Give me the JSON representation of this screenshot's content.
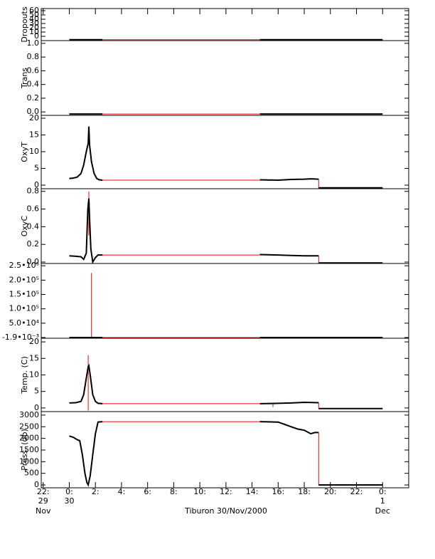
{
  "x_axis": {
    "label": "Tiburon 30/Nov/2000",
    "xlim": [
      -2.15,
      26.0
    ],
    "xticks": [
      {
        "value": -2,
        "label": "22:"
      },
      {
        "value": 0,
        "label": "0:"
      },
      {
        "value": 2,
        "label": "2:"
      },
      {
        "value": 4,
        "label": "4:"
      },
      {
        "value": 6,
        "label": "6:"
      },
      {
        "value": 8,
        "label": "8:"
      },
      {
        "value": 10,
        "label": "10:"
      },
      {
        "value": 12,
        "label": "12:"
      },
      {
        "value": 14,
        "label": "14:"
      },
      {
        "value": 16,
        "label": "16:"
      },
      {
        "value": 18,
        "label": "18:"
      },
      {
        "value": 20,
        "label": "20:"
      },
      {
        "value": 22,
        "label": "22:"
      },
      {
        "value": 24,
        "label": "0:"
      }
    ],
    "xtick_dates": [
      {
        "value": -2,
        "lines": [
          "29",
          "Nov"
        ]
      },
      {
        "value": 0,
        "lines": [
          "30"
        ]
      },
      {
        "value": 24,
        "lines": [
          "1",
          "Dec"
        ]
      }
    ]
  },
  "chart_data": [
    {
      "type": "line",
      "ylabel": "Dropouts",
      "ylim": [
        -10,
        65
      ],
      "yticks": [
        0,
        10,
        20,
        30,
        40,
        50,
        60
      ],
      "segments": [
        {
          "color": "#ff0000",
          "x": [
            2.55,
            14.6
          ],
          "values": [
            -8,
            -8
          ]
        },
        {
          "color": "#000000",
          "x": [
            0,
            2.55
          ],
          "values": [
            -8,
            -8
          ]
        },
        {
          "color": "#000000",
          "x": [
            14.6,
            24
          ],
          "values": [
            -8,
            -8
          ]
        }
      ]
    },
    {
      "type": "line",
      "ylabel": "Trans",
      "ylim": [
        -0.05,
        1.04
      ],
      "yticks": [
        {
          "value": 0,
          "label": "0.0"
        },
        0.2,
        0.4,
        0.6,
        0.8,
        {
          "value": 1,
          "label": "1.0"
        }
      ],
      "segments": [
        {
          "color": "#ff0000",
          "x": [
            2.55,
            14.6
          ],
          "values": [
            -0.03,
            -0.03
          ]
        },
        {
          "color": "#000000",
          "x": [
            0,
            2.55
          ],
          "values": [
            -0.03,
            -0.03
          ]
        },
        {
          "color": "#000000",
          "x": [
            14.6,
            24
          ],
          "values": [
            -0.03,
            -0.03
          ]
        }
      ]
    },
    {
      "type": "line",
      "ylabel": "OxyT",
      "ylim": [
        -1.06,
        20.85
      ],
      "yticks": [
        0,
        5,
        10,
        15,
        20
      ],
      "segments": [
        {
          "color": "#ff0000",
          "x": [
            2.55,
            14.6
          ],
          "values": [
            1.5,
            1.5
          ]
        },
        {
          "color": "#ff0000",
          "x": [
            19.1,
            19.1
          ],
          "values": [
            1.8,
            -0.8
          ]
        },
        {
          "color": "#000000",
          "x": [
            0,
            0.3,
            0.6,
            0.9,
            1.1,
            1.3,
            1.45,
            1.5,
            1.55,
            1.7,
            1.9,
            2.1,
            2.3,
            2.55
          ],
          "values": [
            2,
            2.1,
            2.4,
            3.5,
            6,
            10,
            12.5,
            17.5,
            12,
            7,
            3.5,
            2,
            1.6,
            1.5
          ]
        },
        {
          "color": "#000000",
          "x": [
            14.6,
            16,
            17,
            18,
            18.5,
            19.1
          ],
          "values": [
            1.6,
            1.5,
            1.7,
            1.8,
            1.9,
            1.8
          ]
        },
        {
          "color": "#000000",
          "x": [
            19.1,
            24
          ],
          "values": [
            -0.8,
            -0.8
          ]
        }
      ]
    },
    {
      "type": "line",
      "ylabel": "OxyC",
      "ylim": [
        -0.016,
        0.83
      ],
      "yticks": [
        {
          "value": 0,
          "label": "0.0"
        },
        0.2,
        0.4,
        0.6,
        0.8
      ],
      "segments": [
        {
          "color": "#ff0000",
          "x": [
            2.55,
            14.6
          ],
          "values": [
            0.08,
            0.08
          ]
        },
        {
          "color": "#ff0000",
          "x": [
            1.5,
            1.5
          ],
          "values": [
            0.8,
            0.3
          ]
        },
        {
          "color": "#ff0000",
          "x": [
            19.1,
            19.1
          ],
          "values": [
            0.07,
            -0.01
          ]
        },
        {
          "color": "#000000",
          "x": [
            0,
            0.5,
            0.9,
            1.1,
            1.3,
            1.42,
            1.5,
            1.55,
            1.65,
            1.8,
            2.0,
            2.2,
            2.55
          ],
          "values": [
            0.07,
            0.065,
            0.06,
            0.03,
            0.1,
            0.6,
            0.72,
            0.5,
            0.15,
            0.0,
            0.05,
            0.08,
            0.08
          ]
        },
        {
          "color": "#000000",
          "x": [
            14.6,
            16,
            17,
            18,
            19.1
          ],
          "values": [
            0.085,
            0.08,
            0.075,
            0.07,
            0.07
          ]
        },
        {
          "color": "#000000",
          "x": [
            19.1,
            24
          ],
          "values": [
            -0.01,
            -0.01
          ]
        }
      ]
    },
    {
      "type": "line",
      "ylim": [
        -2500,
        258000
      ],
      "yticks": [
        {
          "value": -0.0019,
          "label": "-1.9•10⁻³"
        },
        {
          "value": 50000,
          "label": "5.0•10⁴"
        },
        {
          "value": 100000,
          "label": "1.0•10⁵"
        },
        {
          "value": 150000,
          "label": "1.5•10⁵"
        },
        {
          "value": 200000,
          "label": "2.0•10⁵"
        },
        {
          "value": 250000,
          "label": "2.5•10⁵"
        }
      ],
      "segments": [
        {
          "color": "#ff0000",
          "x": [
            2.55,
            14.6
          ],
          "values": [
            0,
            0
          ]
        },
        {
          "color": "#ff0000",
          "x": [
            1.7,
            1.7
          ],
          "values": [
            0,
            225000
          ]
        },
        {
          "color": "#000000",
          "x": [
            0,
            2.55
          ],
          "values": [
            0,
            0
          ]
        },
        {
          "color": "#000000",
          "x": [
            14.6,
            24
          ],
          "values": [
            0,
            0
          ]
        }
      ]
    },
    {
      "type": "line",
      "ylabel": "Temp. (C)",
      "ylim": [
        -1.1,
        21.1
      ],
      "yticks": [
        0,
        5,
        10,
        15,
        20
      ],
      "segments": [
        {
          "color": "#ff0000",
          "x": [
            2.55,
            14.6
          ],
          "values": [
            1.3,
            1.3
          ]
        },
        {
          "color": "#ff0000",
          "x": [
            1.45,
            1.45
          ],
          "values": [
            16,
            -0.8
          ]
        },
        {
          "color": "#ff0000",
          "x": [
            15.6,
            15.6
          ],
          "values": [
            1.3,
            0.3
          ]
        },
        {
          "color": "#ff0000",
          "x": [
            19.1,
            19.1
          ],
          "values": [
            1.6,
            -0.2
          ]
        },
        {
          "color": "#000000",
          "x": [
            0,
            0.5,
            0.9,
            1.1,
            1.3,
            1.45,
            1.5,
            1.6,
            1.8,
            2.0,
            2.2,
            2.55
          ],
          "values": [
            1.5,
            1.6,
            2,
            4,
            9,
            12.5,
            12.8,
            10,
            4,
            2,
            1.4,
            1.3
          ]
        },
        {
          "color": "#000000",
          "x": [
            14.6,
            16,
            17,
            18,
            19.1
          ],
          "values": [
            1.3,
            1.4,
            1.5,
            1.7,
            1.6
          ]
        },
        {
          "color": "#000000",
          "x": [
            19.1,
            24
          ],
          "values": [
            -0.2,
            -0.2
          ]
        }
      ]
    },
    {
      "type": "line",
      "ylabel": "Press. (db)",
      "ylim": [
        -121,
        3150
      ],
      "yticks": [
        0,
        500,
        1000,
        1500,
        2000,
        2500,
        3000
      ],
      "segments": [
        {
          "color": "#ff0000",
          "x": [
            2.55,
            14.6
          ],
          "values": [
            2720,
            2720
          ]
        },
        {
          "color": "#ff0000",
          "x": [
            19.1,
            19.1
          ],
          "values": [
            2250,
            0
          ]
        },
        {
          "color": "#000000",
          "x": [
            0,
            0.3,
            0.6,
            0.8,
            1.0,
            1.2,
            1.35,
            1.45,
            1.6,
            1.8,
            2.0,
            2.2,
            2.55
          ],
          "values": [
            2100,
            2050,
            1950,
            1900,
            1300,
            500,
            100,
            0,
            400,
            1300,
            2200,
            2700,
            2720
          ]
        },
        {
          "color": "#000000",
          "x": [
            14.6,
            16,
            16.5,
            17,
            17.5,
            18,
            18.5,
            18.8,
            19.1
          ],
          "values": [
            2720,
            2700,
            2600,
            2500,
            2400,
            2350,
            2200,
            2250,
            2250
          ]
        },
        {
          "color": "#000000",
          "x": [
            19.1,
            24
          ],
          "values": [
            0,
            0
          ]
        }
      ]
    }
  ]
}
